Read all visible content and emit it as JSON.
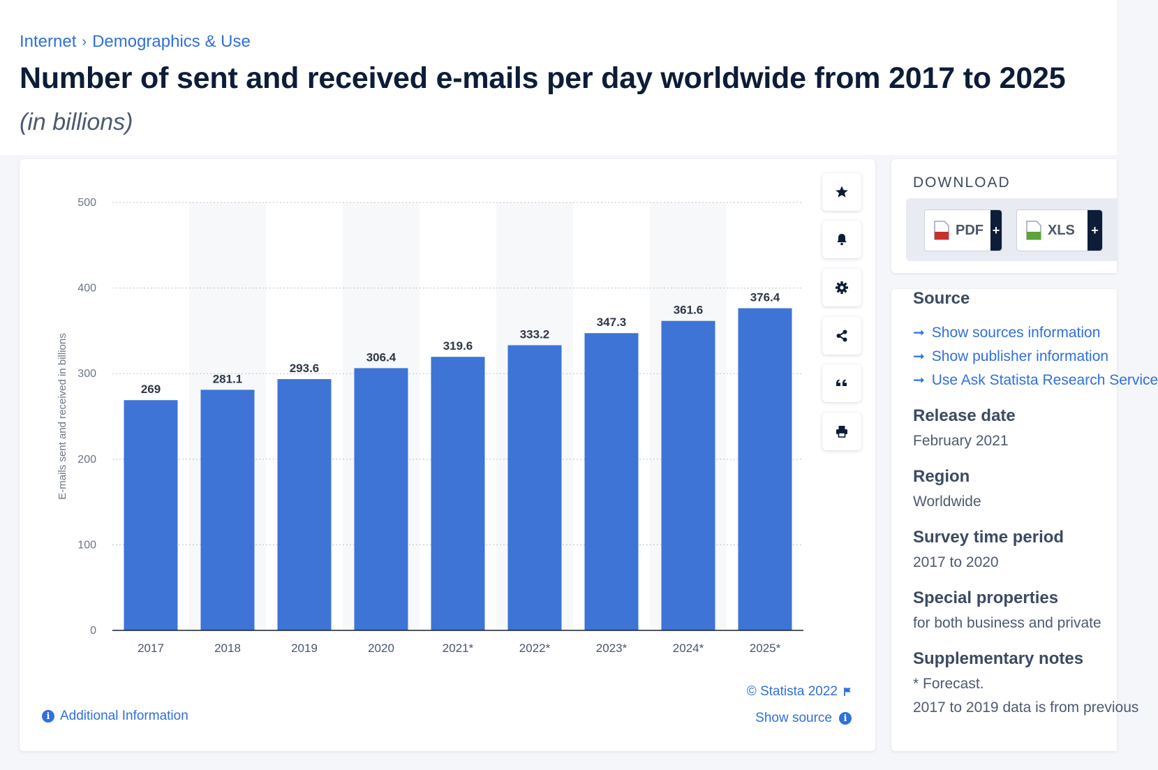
{
  "breadcrumb": {
    "items": [
      "Internet",
      "Demographics & Use"
    ],
    "separator": "›"
  },
  "page": {
    "title": "Number of sent and received e-mails per day worldwide from 2017 to 2025",
    "subtitle": "(in billions)"
  },
  "chart_data": {
    "type": "bar",
    "categories": [
      "2017",
      "2018",
      "2019",
      "2020",
      "2021*",
      "2022*",
      "2023*",
      "2024*",
      "2025*"
    ],
    "values": [
      269,
      281.1,
      293.6,
      306.4,
      319.6,
      333.2,
      347.3,
      361.6,
      376.4
    ],
    "value_labels": [
      "269",
      "281.1",
      "293.6",
      "306.4",
      "319.6",
      "333.2",
      "347.3",
      "361.6",
      "376.4"
    ],
    "ylabel": "E-mails sent and received in billions",
    "xlabel": "",
    "ylim": [
      0,
      500
    ],
    "yticks": [
      0,
      100,
      200,
      300,
      400,
      500
    ],
    "bar_color": "#3d74d6",
    "grid": true
  },
  "toolbar": {
    "icons": [
      "star-icon",
      "bell-icon",
      "gear-icon",
      "share-icon",
      "quote-icon",
      "print-icon"
    ]
  },
  "chart_footer": {
    "copyright": "© Statista 2022",
    "show_source": "Show source",
    "additional_info": "Additional Information"
  },
  "download": {
    "title": "DOWNLOAD",
    "pdf_label": "PDF",
    "xls_label": "XLS",
    "plus": "+"
  },
  "info_panel": {
    "source_heading": "Source",
    "links": [
      "Show sources information",
      "Show publisher information",
      "Use Ask Statista Research Service"
    ],
    "release_date_label": "Release date",
    "release_date": "February 2021",
    "region_label": "Region",
    "region": "Worldwide",
    "survey_period_label": "Survey time period",
    "survey_period": "2017 to 2020",
    "special_properties_label": "Special properties",
    "special_properties": "for both business and private",
    "notes_label": "Supplementary notes",
    "notes_line1": "* Forecast.",
    "notes_line2": "2017 to 2019 data is from previous"
  },
  "colors": {
    "accent": "#2f6fde",
    "title": "#0d1d38",
    "bar": "#3d74d6",
    "dark_button": "#0d1d38"
  }
}
